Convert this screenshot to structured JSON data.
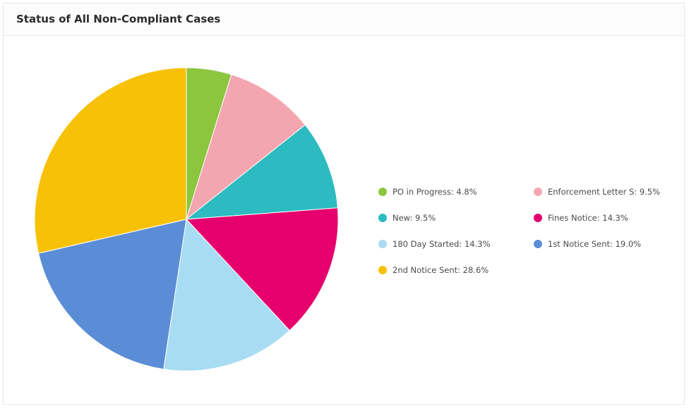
{
  "card": {
    "title": "Status of All Non-Compliant Cases"
  },
  "chart_data": {
    "type": "pie",
    "title": "Status of All Non-Compliant Cases",
    "legend_position": "right",
    "slices": [
      {
        "label": "PO in Progress",
        "value": 4.8,
        "display": "PO in Progress: 4.8%",
        "color": "#8cc63f"
      },
      {
        "label": "Enforcement Letter S",
        "value": 9.5,
        "display": "Enforcement Letter S: 9.5%",
        "color": "#f4a6b0"
      },
      {
        "label": "New",
        "value": 9.5,
        "display": "New: 9.5%",
        "color": "#2bbbc0"
      },
      {
        "label": "Fines Notice",
        "value": 14.3,
        "display": "Fines Notice: 14.3%",
        "color": "#e6006e"
      },
      {
        "label": "180 Day Started",
        "value": 14.3,
        "display": "180 Day Started: 14.3%",
        "color": "#a8dcf2"
      },
      {
        "label": "1st Notice Sent",
        "value": 19.0,
        "display": "1st Notice Sent: 19.0%",
        "color": "#5b8dd6"
      },
      {
        "label": "2nd Notice Sent",
        "value": 28.6,
        "display": "2nd Notice Sent: 28.6%",
        "color": "#f7c108"
      }
    ]
  }
}
